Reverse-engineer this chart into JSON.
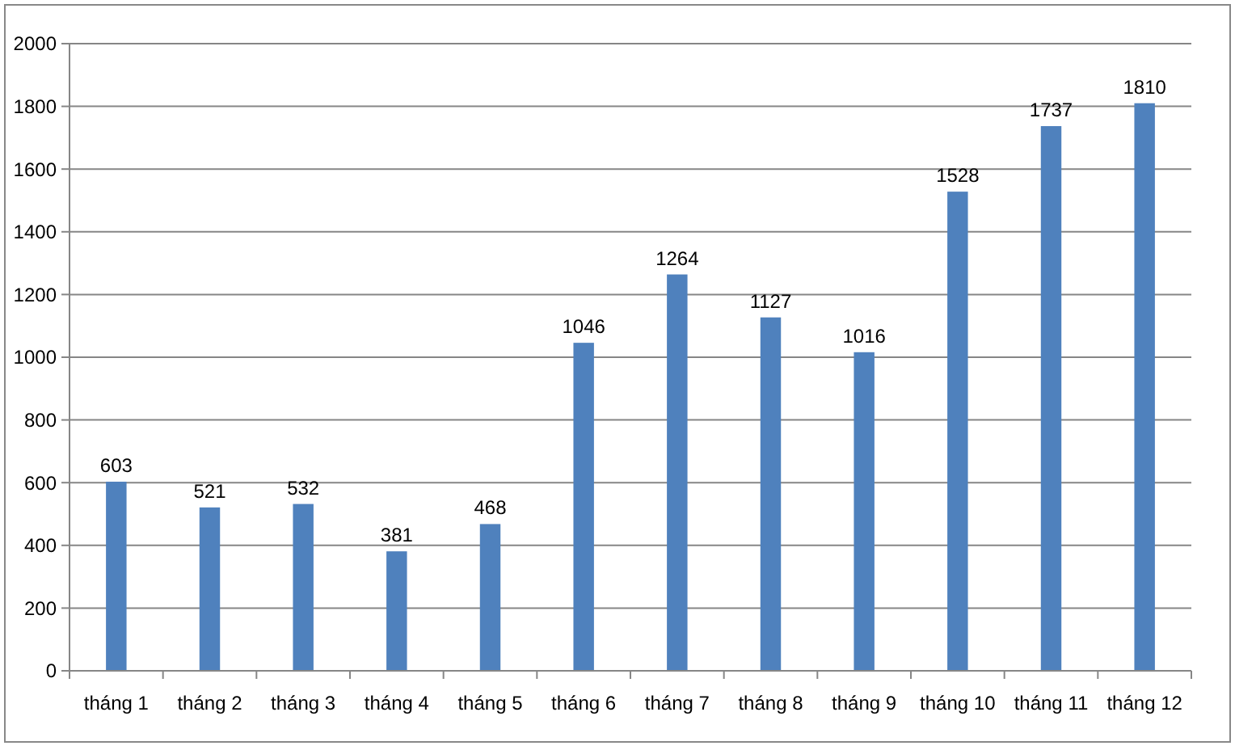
{
  "chart_data": {
    "type": "bar",
    "categories": [
      "tháng 1",
      "tháng 2",
      "tháng 3",
      "tháng 4",
      "tháng 5",
      "tháng 6",
      "tháng 7",
      "tháng 8",
      "tháng 9",
      "tháng 10",
      "tháng 11",
      "tháng 12"
    ],
    "values": [
      603,
      521,
      532,
      381,
      468,
      1046,
      1264,
      1127,
      1016,
      1528,
      1737,
      1810
    ],
    "color": "#4f81bd",
    "ylim": [
      0,
      2000
    ],
    "yticks": [
      0,
      200,
      400,
      600,
      800,
      1000,
      1200,
      1400,
      1600,
      1800,
      2000
    ],
    "grid": "y",
    "data_labels": true
  }
}
